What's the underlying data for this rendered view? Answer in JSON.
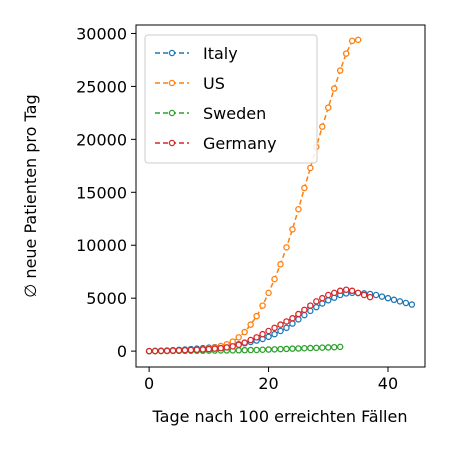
{
  "chart_data": {
    "type": "line",
    "xlabel": "Tage nach 100 erreichten Fällen",
    "ylabel": "∅ neue Patienten pro Tag",
    "xlim": [
      -2.2,
      46.2
    ],
    "ylim": [
      -1500,
      30800
    ],
    "xticks": [
      0,
      20,
      40
    ],
    "yticks": [
      0,
      5000,
      10000,
      15000,
      20000,
      25000,
      30000
    ],
    "legend_position": "top-left",
    "series": [
      {
        "name": "Italy",
        "color": "#1f77b4",
        "x": [
          0,
          1,
          2,
          3,
          4,
          5,
          6,
          7,
          8,
          9,
          10,
          11,
          12,
          13,
          14,
          15,
          16,
          17,
          18,
          19,
          20,
          21,
          22,
          23,
          24,
          25,
          26,
          27,
          28,
          29,
          30,
          31,
          32,
          33,
          34,
          35,
          36,
          37,
          38,
          39,
          40,
          41,
          42,
          43,
          44
        ],
        "values": [
          0,
          20,
          40,
          60,
          90,
          120,
          150,
          190,
          230,
          280,
          330,
          380,
          440,
          500,
          560,
          650,
          750,
          870,
          1000,
          1150,
          1350,
          1600,
          1900,
          2200,
          2600,
          3000,
          3400,
          3800,
          4150,
          4500,
          4800,
          5050,
          5300,
          5450,
          5500,
          5480,
          5450,
          5400,
          5300,
          5150,
          5000,
          4850,
          4700,
          4550,
          4400
        ]
      },
      {
        "name": "US",
        "color": "#ff7f0e",
        "x": [
          0,
          1,
          2,
          3,
          4,
          5,
          6,
          7,
          8,
          9,
          10,
          11,
          12,
          13,
          14,
          15,
          16,
          17,
          18,
          19,
          20,
          21,
          22,
          23,
          24,
          25,
          26,
          27,
          28,
          29,
          30,
          31,
          32,
          33,
          34,
          35
        ],
        "values": [
          0,
          0,
          10,
          20,
          30,
          50,
          70,
          100,
          140,
          190,
          260,
          350,
          480,
          650,
          900,
          1300,
          1800,
          2500,
          3300,
          4300,
          5500,
          6800,
          8200,
          9800,
          11500,
          13400,
          15400,
          17300,
          19300,
          21200,
          23000,
          24800,
          26500,
          28100,
          29300,
          29400
        ]
      },
      {
        "name": "Sweden",
        "color": "#2ca02c",
        "x": [
          0,
          1,
          2,
          3,
          4,
          5,
          6,
          7,
          8,
          9,
          10,
          11,
          12,
          13,
          14,
          15,
          16,
          17,
          18,
          19,
          20,
          21,
          22,
          23,
          24,
          25,
          26,
          27,
          28,
          29,
          30,
          31,
          32
        ],
        "values": [
          0,
          5,
          10,
          15,
          20,
          25,
          30,
          35,
          40,
          45,
          50,
          55,
          60,
          65,
          70,
          80,
          90,
          100,
          110,
          130,
          150,
          170,
          190,
          210,
          230,
          250,
          270,
          290,
          310,
          330,
          350,
          370,
          400
        ]
      },
      {
        "name": "Germany",
        "color": "#d62728",
        "x": [
          0,
          1,
          2,
          3,
          4,
          5,
          6,
          7,
          8,
          9,
          10,
          11,
          12,
          13,
          14,
          15,
          16,
          17,
          18,
          19,
          20,
          21,
          22,
          23,
          24,
          25,
          26,
          27,
          28,
          29,
          30,
          31,
          32,
          33,
          34,
          35,
          36,
          37
        ],
        "values": [
          0,
          10,
          20,
          30,
          50,
          70,
          90,
          110,
          130,
          160,
          190,
          230,
          280,
          350,
          450,
          600,
          800,
          1050,
          1300,
          1600,
          1900,
          2200,
          2500,
          2800,
          3100,
          3500,
          3900,
          4300,
          4700,
          5000,
          5300,
          5500,
          5700,
          5800,
          5700,
          5500,
          5300,
          5100
        ]
      }
    ]
  }
}
